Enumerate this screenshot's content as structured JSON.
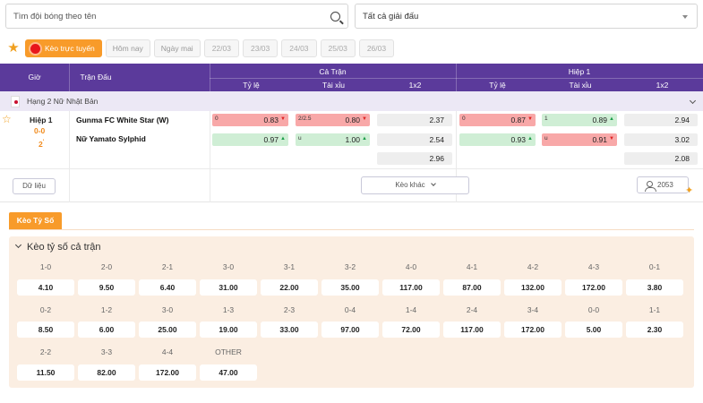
{
  "search": {
    "placeholder": "Tìm đội bóng theo tên"
  },
  "league_filter": {
    "selected": "Tất cả giải đấu"
  },
  "date_tabs": {
    "live": "Kèo trực tuyến",
    "today": "Hôm nay",
    "tomorrow": "Ngày mai",
    "dates": [
      "22/03",
      "23/03",
      "24/03",
      "25/03",
      "26/03"
    ]
  },
  "table_header": {
    "time": "Giờ",
    "match": "Trận Đấu",
    "full_match": "Cả Trận",
    "first_half": "Hiệp 1",
    "handicap": "Tỷ lệ",
    "over_under": "Tài xỉu",
    "x12": "1x2"
  },
  "league": {
    "name": "Hạng 2 Nữ Nhật Bản"
  },
  "match": {
    "period": "Hiệp 1",
    "score": "0-0",
    "minute": "2",
    "minute_mark": "'",
    "home": "Gunma FC White Star (W)",
    "away": "Nữ Yamato Sylphid",
    "full": {
      "handicap": [
        {
          "line": "0",
          "value": "0.83",
          "trend": "down",
          "color": "red"
        },
        {
          "line": "",
          "value": "0.97",
          "trend": "up",
          "color": "green"
        }
      ],
      "over_under": [
        {
          "line": "2/2.5",
          "value": "0.80",
          "trend": "down",
          "color": "red"
        },
        {
          "line": "u",
          "value": "1.00",
          "trend": "up",
          "color": "green"
        }
      ],
      "x12": [
        "2.37",
        "2.54",
        "2.96"
      ]
    },
    "half": {
      "handicap": [
        {
          "line": "0",
          "value": "0.87",
          "trend": "down",
          "color": "red"
        },
        {
          "line": "",
          "value": "0.93",
          "trend": "up",
          "color": "green"
        }
      ],
      "over_under": [
        {
          "line": "1",
          "value": "0.89",
          "trend": "up",
          "color": "green"
        },
        {
          "line": "u",
          "value": "0.91",
          "trend": "down",
          "color": "red"
        }
      ],
      "x12": [
        "2.94",
        "3.02",
        "2.08"
      ]
    },
    "trend_arrows": {
      "up": "▲",
      "down": "▼"
    },
    "data_button": "Dữ liệu",
    "more_button": "Kèo khác",
    "users_count": "2053"
  },
  "correct_score": {
    "tab": "Kèo Tỷ Số",
    "heading": "Kèo tỷ số cả trận",
    "rows": [
      [
        {
          "score": "1-0",
          "odd": "4.10"
        },
        {
          "score": "2-0",
          "odd": "9.50"
        },
        {
          "score": "2-1",
          "odd": "6.40"
        },
        {
          "score": "3-0",
          "odd": "31.00"
        },
        {
          "score": "3-1",
          "odd": "22.00"
        },
        {
          "score": "3-2",
          "odd": "35.00"
        },
        {
          "score": "4-0",
          "odd": "117.00"
        },
        {
          "score": "4-1",
          "odd": "87.00"
        },
        {
          "score": "4-2",
          "odd": "132.00"
        },
        {
          "score": "4-3",
          "odd": "172.00"
        },
        {
          "score": "0-1",
          "odd": "3.80"
        }
      ],
      [
        {
          "score": "0-2",
          "odd": "8.50"
        },
        {
          "score": "1-2",
          "odd": "6.00"
        },
        {
          "score": "3-0",
          "odd": "25.00"
        },
        {
          "score": "1-3",
          "odd": "19.00"
        },
        {
          "score": "2-3",
          "odd": "33.00"
        },
        {
          "score": "0-4",
          "odd": "97.00"
        },
        {
          "score": "1-4",
          "odd": "72.00"
        },
        {
          "score": "2-4",
          "odd": "117.00"
        },
        {
          "score": "3-4",
          "odd": "172.00"
        },
        {
          "score": "0-0",
          "odd": "5.00"
        },
        {
          "score": "1-1",
          "odd": "2.30"
        }
      ],
      [
        {
          "score": "2-2",
          "odd": "11.50"
        },
        {
          "score": "3-3",
          "odd": "82.00"
        },
        {
          "score": "4-4",
          "odd": "172.00"
        },
        {
          "score": "OTHER",
          "odd": "47.00"
        }
      ]
    ]
  },
  "colors": {
    "header_purple": "#5b3a9b",
    "accent_orange": "#f89b2a",
    "odd_red": "#f8a8a8",
    "odd_green": "#cfeed5",
    "panel_bg": "#fbeee2"
  },
  "icons": {
    "search": "search-icon",
    "favorite": "star-icon",
    "live": "live-dot-icon",
    "collapse": "chevron-down-icon",
    "users": "user-icon",
    "sparkle": "sparkle-icon",
    "flag": "japan-flag-icon"
  }
}
